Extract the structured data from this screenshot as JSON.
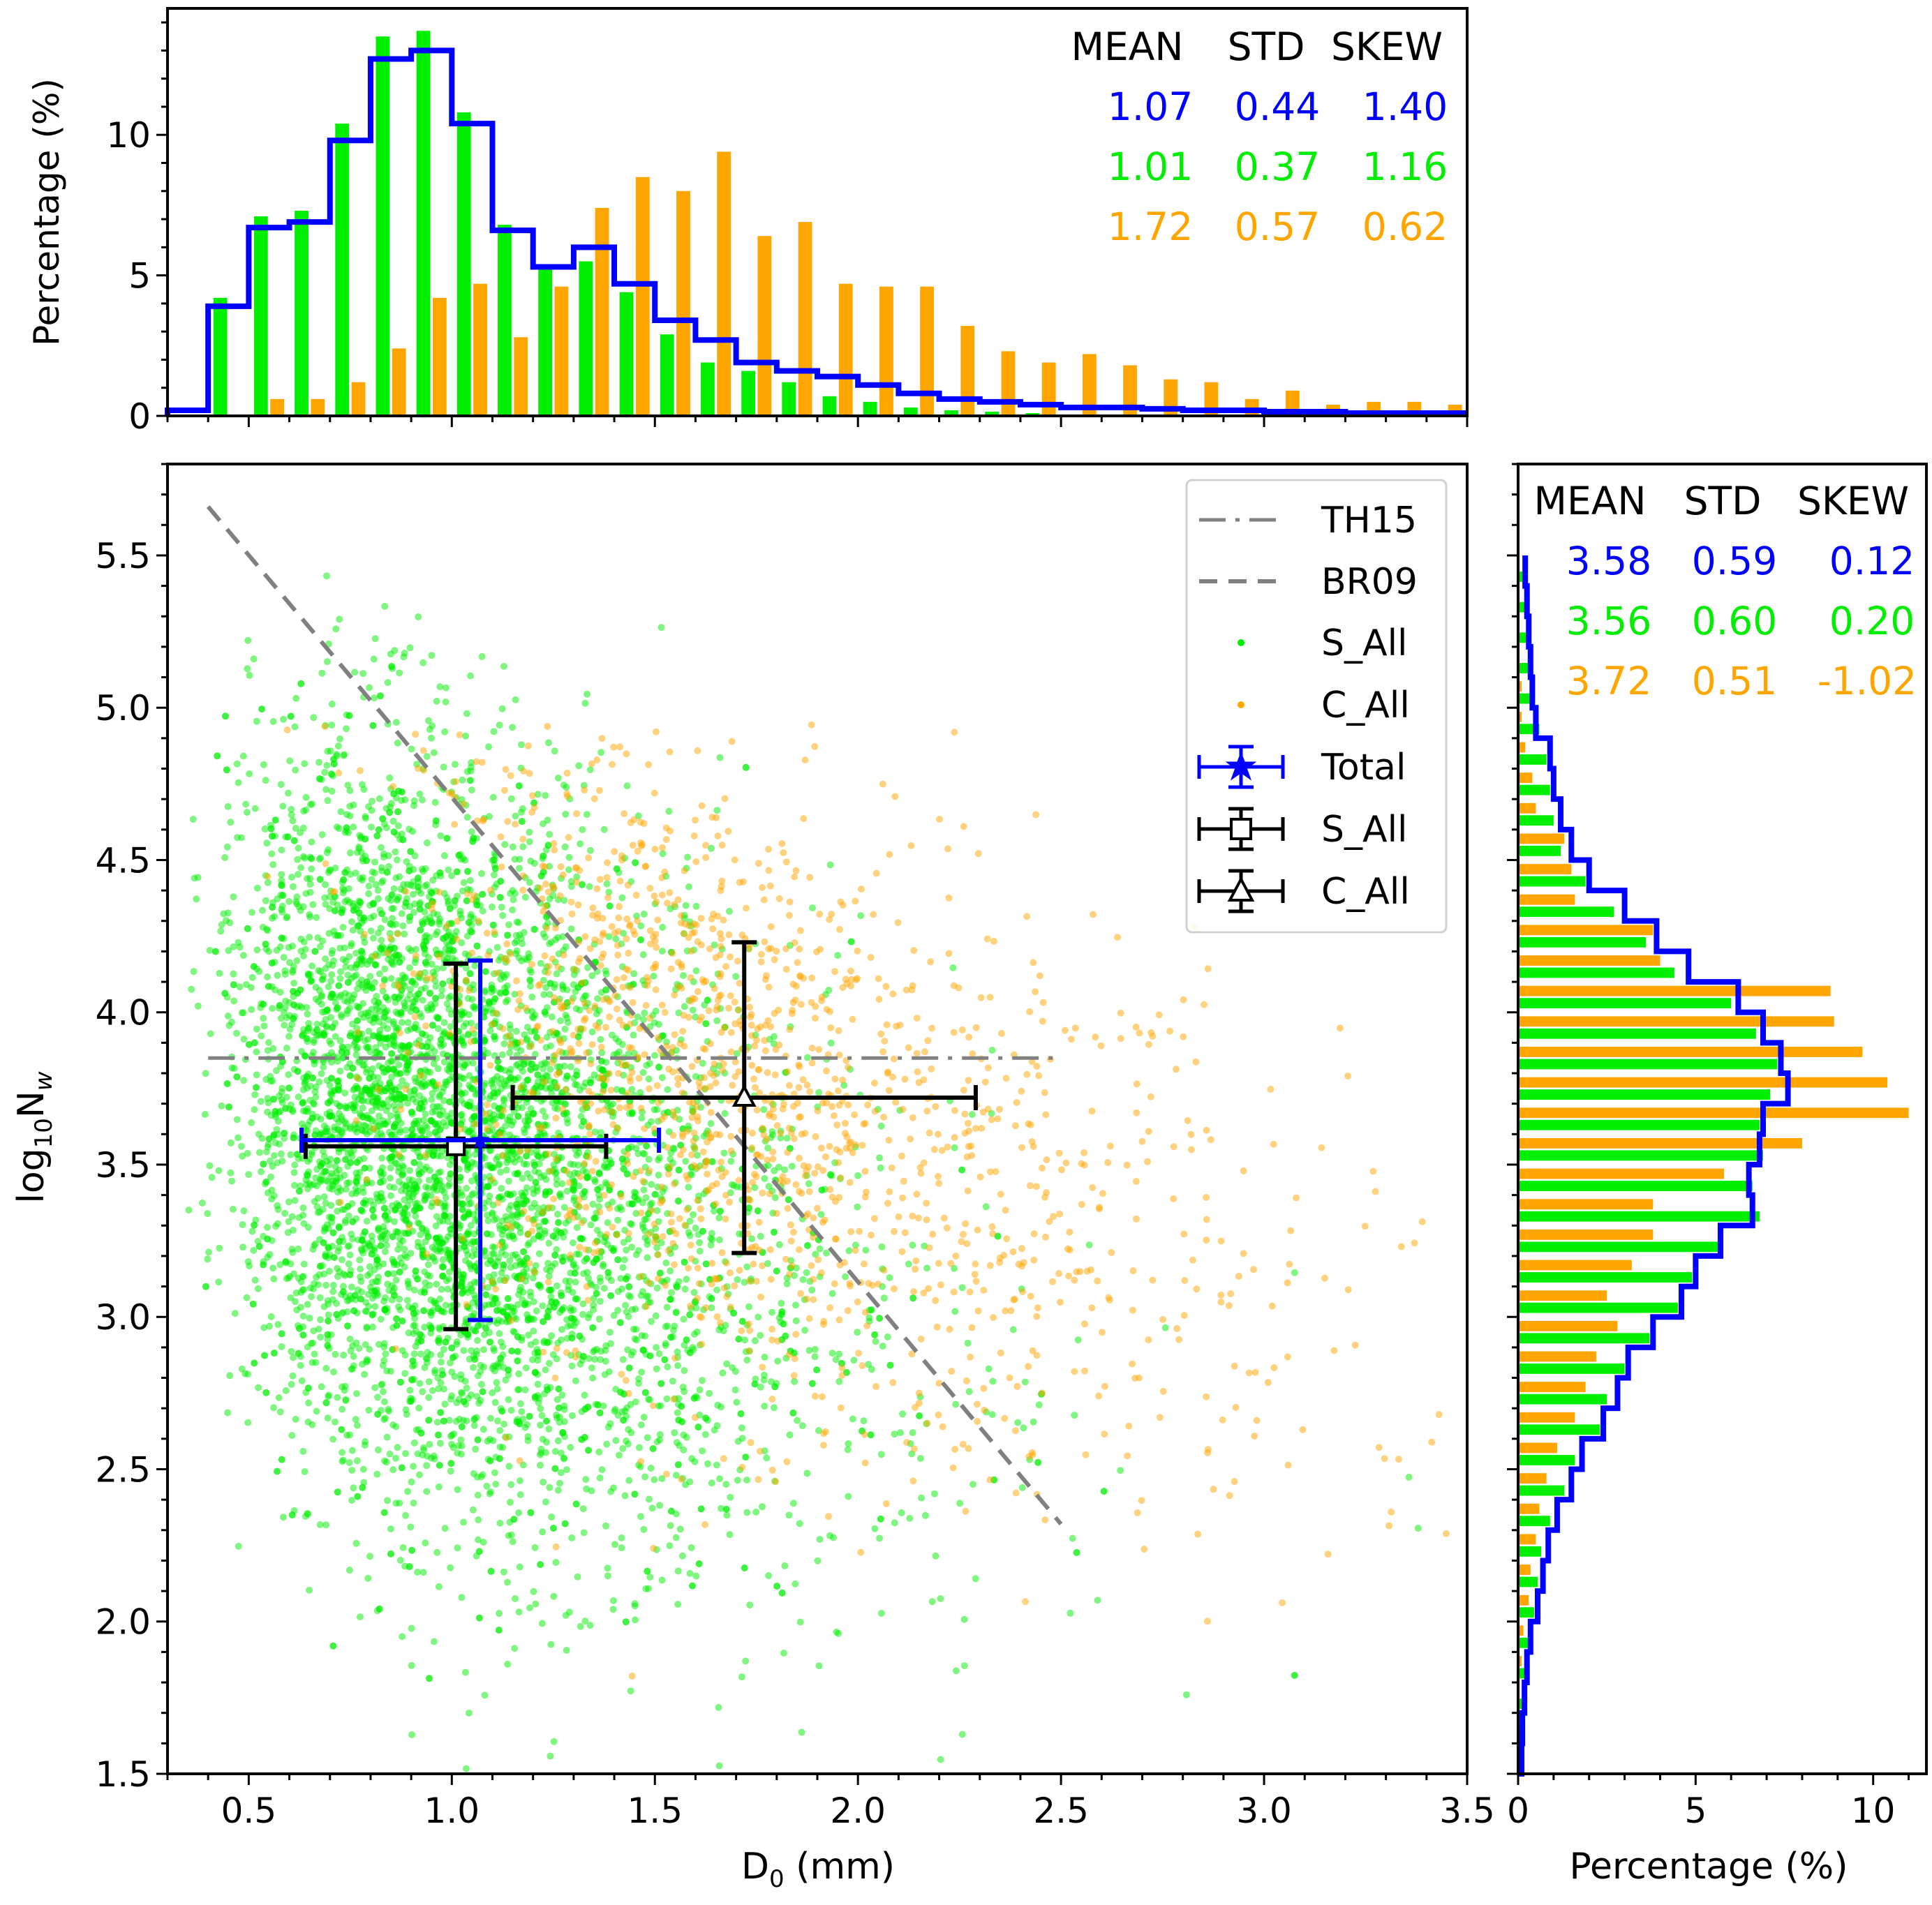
{
  "colors": {
    "total": "#0000ff",
    "s_all": "#00ee00",
    "c_all": "#ffa500",
    "ref_line": "#808080",
    "error_black": "#000000"
  },
  "chart_data": [
    {
      "id": "top-histogram",
      "type": "bar",
      "ylabel": "Percentage (%)",
      "xlim": [
        0.3,
        3.5
      ],
      "ylim": [
        0,
        14.5
      ],
      "yticks": [
        "0",
        "5",
        "10"
      ],
      "yticks_values": [
        0,
        5,
        10
      ],
      "bin_edges": [
        0.3,
        0.4,
        0.5,
        0.6,
        0.7,
        0.8,
        0.9,
        1.0,
        1.1,
        1.2,
        1.3,
        1.4,
        1.5,
        1.6,
        1.7,
        1.8,
        1.9,
        2.0,
        2.1,
        2.2,
        2.3,
        2.4,
        2.5,
        2.6,
        2.7,
        2.8,
        2.9,
        3.0,
        3.1,
        3.2,
        3.3,
        3.4,
        3.5
      ],
      "series": [
        {
          "name": "S_All",
          "style": "bar",
          "color": "#00ee00",
          "values": [
            0,
            4.2,
            7.1,
            7.3,
            10.4,
            13.5,
            13.7,
            10.8,
            6.8,
            5.2,
            5.5,
            4.4,
            2.9,
            1.9,
            1.6,
            1.2,
            0.7,
            0.5,
            0.3,
            0.2,
            0.15,
            0.1,
            0.05,
            0.05,
            0.03,
            0.02,
            0.02,
            0.01,
            0.01,
            0.01,
            0.01,
            0.01
          ]
        },
        {
          "name": "C_All",
          "style": "bar",
          "color": "#ffa500",
          "values": [
            0,
            0,
            0.6,
            0.6,
            1.2,
            2.4,
            4.2,
            4.7,
            2.8,
            4.6,
            7.4,
            8.5,
            8.0,
            9.4,
            6.4,
            6.9,
            4.7,
            4.6,
            4.6,
            3.2,
            2.3,
            1.9,
            2.2,
            1.8,
            1.3,
            1.2,
            0.6,
            0.9,
            0.4,
            0.5,
            0.5,
            0.4
          ]
        },
        {
          "name": "Total",
          "style": "step",
          "color": "#0000ff",
          "values": [
            0.2,
            3.9,
            6.7,
            6.9,
            9.8,
            12.7,
            13.0,
            10.4,
            6.6,
            5.3,
            6.0,
            4.7,
            3.4,
            2.7,
            1.9,
            1.6,
            1.4,
            1.1,
            0.8,
            0.6,
            0.5,
            0.4,
            0.3,
            0.3,
            0.25,
            0.2,
            0.2,
            0.15,
            0.15,
            0.1,
            0.1,
            0.1
          ]
        }
      ],
      "stats": {
        "headers": [
          "MEAN",
          "STD",
          "SKEW"
        ],
        "rows": [
          {
            "series": "Total",
            "color": "#0000ff",
            "values": [
              "1.07",
              "0.44",
              "1.40"
            ]
          },
          {
            "series": "S_All",
            "color": "#00ee00",
            "values": [
              "1.01",
              "0.37",
              "1.16"
            ]
          },
          {
            "series": "C_All",
            "color": "#ffa500",
            "values": [
              "1.72",
              "0.57",
              "0.62"
            ]
          }
        ]
      }
    },
    {
      "id": "main-scatter",
      "type": "scatter",
      "xlabel": "D",
      "xlabel_sub": "0",
      "xlabel_rest": " (mm)",
      "ylabel_pre": "log",
      "ylabel_sub1": "10",
      "ylabel_mid": "N",
      "ylabel_sub2": "w",
      "xlim": [
        0.3,
        3.5
      ],
      "ylim": [
        1.5,
        5.8
      ],
      "xticks": [
        "0.5",
        "1.0",
        "1.5",
        "2.0",
        "2.5",
        "3.0",
        "3.5"
      ],
      "xticks_values": [
        0.5,
        1.0,
        1.5,
        2.0,
        2.5,
        3.0,
        3.5
      ],
      "yticks": [
        "1.5",
        "2.0",
        "2.5",
        "3.0",
        "3.5",
        "4.0",
        "4.5",
        "5.0",
        "5.5"
      ],
      "yticks_values": [
        1.5,
        2.0,
        2.5,
        3.0,
        3.5,
        4.0,
        4.5,
        5.0,
        5.5
      ],
      "reference_lines": [
        {
          "name": "TH15",
          "style": "dashdot",
          "color": "#808080",
          "x": [
            0.4,
            2.5
          ],
          "y": [
            3.85,
            3.85
          ]
        },
        {
          "name": "BR09",
          "style": "dashed",
          "color": "#808080",
          "x": [
            0.4,
            2.5
          ],
          "y": [
            5.66,
            2.32
          ]
        }
      ],
      "scatter_series": [
        {
          "name": "S_All",
          "color": "#00ee00",
          "center_x": 1.01,
          "center_y": 3.56,
          "std_x": 0.37,
          "std_y": 0.6,
          "x_range": [
            0.35,
            3.4
          ],
          "y_range": [
            1.5,
            5.48
          ]
        },
        {
          "name": "C_All",
          "color": "#ffa500",
          "center_x": 1.72,
          "center_y": 3.72,
          "std_x": 0.57,
          "std_y": 0.51,
          "x_range": [
            0.4,
            3.5
          ],
          "y_range": [
            1.7,
            4.95
          ]
        }
      ],
      "errorbars": [
        {
          "name": "Total",
          "marker": "star",
          "color": "#0000ff",
          "x": 1.07,
          "y": 3.58,
          "xerr": 0.44,
          "yerr": 0.59
        },
        {
          "name": "S_All",
          "marker": "square",
          "color": "#000000",
          "x": 1.01,
          "y": 3.56,
          "xerr": 0.37,
          "yerr": 0.6
        },
        {
          "name": "C_All",
          "marker": "triangle",
          "color": "#000000",
          "x": 1.72,
          "y": 3.72,
          "xerr": 0.57,
          "yerr": 0.51
        }
      ],
      "legend": {
        "placement": "top-right",
        "entries": [
          {
            "label": "TH15",
            "kind": "dashdot"
          },
          {
            "label": "BR09",
            "kind": "dashed"
          },
          {
            "label": "S_All",
            "kind": "dot-green"
          },
          {
            "label": "C_All",
            "kind": "dot-orange"
          },
          {
            "label": "Total",
            "kind": "err-blue"
          },
          {
            "label": "S_All",
            "kind": "err-square"
          },
          {
            "label": "C_All",
            "kind": "err-triangle"
          }
        ]
      }
    },
    {
      "id": "right-histogram",
      "type": "bar",
      "orientation": "horizontal",
      "xlabel": "Percentage (%)",
      "xlim": [
        0,
        11.5
      ],
      "xticks": [
        "0",
        "5",
        "10"
      ],
      "xticks_values": [
        0,
        5,
        10
      ],
      "bin_edges": [
        1.5,
        1.6,
        1.7,
        1.8,
        1.9,
        2.0,
        2.1,
        2.2,
        2.3,
        2.4,
        2.5,
        2.6,
        2.7,
        2.8,
        2.9,
        3.0,
        3.1,
        3.2,
        3.3,
        3.4,
        3.5,
        3.6,
        3.7,
        3.8,
        3.9,
        4.0,
        4.1,
        4.2,
        4.3,
        4.4,
        4.5,
        4.6,
        4.7,
        4.8,
        4.9,
        5.0,
        5.1,
        5.2,
        5.3,
        5.4,
        5.5
      ],
      "series": [
        {
          "name": "S_All",
          "style": "bar",
          "color": "#00ee00",
          "values": [
            0.05,
            0.1,
            0.15,
            0.2,
            0.3,
            0.45,
            0.55,
            0.65,
            0.9,
            1.3,
            1.6,
            2.3,
            2.5,
            3.0,
            3.7,
            4.5,
            4.9,
            5.7,
            6.8,
            6.6,
            6.9,
            6.8,
            7.1,
            7.3,
            6.7,
            6.0,
            4.4,
            3.6,
            2.7,
            1.9,
            1.2,
            1.0,
            0.9,
            0.8,
            0.6,
            0.4,
            0.35,
            0.3,
            0.2,
            0.15
          ]
        },
        {
          "name": "C_All",
          "style": "bar",
          "color": "#ffa500",
          "values": [
            0,
            0,
            0,
            0.1,
            0.15,
            0.3,
            0.35,
            0.5,
            0.6,
            0.8,
            1.1,
            1.6,
            1.9,
            2.2,
            2.8,
            2.5,
            3.2,
            3.8,
            3.8,
            5.8,
            8.0,
            11.0,
            10.4,
            9.7,
            8.9,
            8.8,
            4.0,
            3.8,
            1.6,
            1.5,
            1.3,
            0.5,
            0.4,
            0.2,
            0.1,
            0.1,
            0,
            0,
            0,
            0
          ]
        },
        {
          "name": "Total",
          "style": "step",
          "color": "#0000ff",
          "values": [
            0.1,
            0.12,
            0.18,
            0.25,
            0.35,
            0.55,
            0.7,
            0.85,
            1.1,
            1.5,
            1.8,
            2.4,
            2.8,
            3.1,
            3.8,
            4.6,
            5.0,
            5.7,
            6.6,
            6.5,
            6.8,
            6.9,
            7.6,
            7.4,
            6.9,
            6.2,
            4.8,
            3.9,
            3.0,
            2.0,
            1.5,
            1.2,
            1.0,
            0.9,
            0.5,
            0.4,
            0.35,
            0.3,
            0.25,
            0.2
          ]
        }
      ],
      "stats": {
        "headers": [
          "MEAN",
          "STD",
          "SKEW"
        ],
        "rows": [
          {
            "series": "Total",
            "color": "#0000ff",
            "values": [
              "3.58",
              "0.59",
              "0.12"
            ]
          },
          {
            "series": "S_All",
            "color": "#00ee00",
            "values": [
              "3.56",
              "0.60",
              "0.20"
            ]
          },
          {
            "series": "C_All",
            "color": "#ffa500",
            "values": [
              "3.72",
              "0.51",
              "-1.02"
            ]
          }
        ]
      }
    }
  ]
}
